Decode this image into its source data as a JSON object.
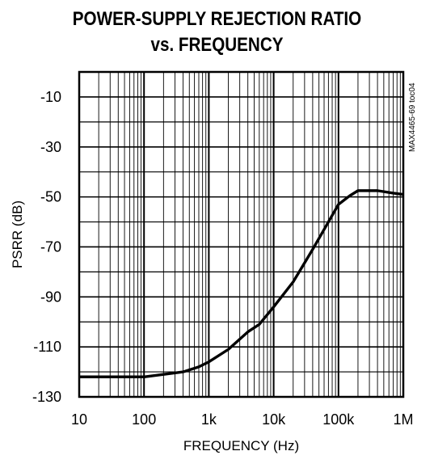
{
  "chart_data": {
    "type": "line",
    "title_line1": "POWER-SUPPLY REJECTION RATIO",
    "title_line2": "vs. FREQUENCY",
    "xlabel": "FREQUENCY (Hz)",
    "ylabel": "PSRR (dB)",
    "x_scale": "log",
    "xlim": [
      10,
      1000000
    ],
    "ylim": [
      -130,
      0
    ],
    "x_ticks": [
      {
        "value": 10,
        "label": "10"
      },
      {
        "value": 100,
        "label": "100"
      },
      {
        "value": 1000,
        "label": "1k"
      },
      {
        "value": 10000,
        "label": "10k"
      },
      {
        "value": 100000,
        "label": "100k"
      },
      {
        "value": 1000000,
        "label": "1M"
      }
    ],
    "y_ticks": [
      {
        "value": -10,
        "label": "-10"
      },
      {
        "value": -30,
        "label": "-30"
      },
      {
        "value": -50,
        "label": "-50"
      },
      {
        "value": -70,
        "label": "-70"
      },
      {
        "value": -90,
        "label": "-90"
      },
      {
        "value": -110,
        "label": "-110"
      },
      {
        "value": -130,
        "label": "-130"
      }
    ],
    "grid": true,
    "side_note": "MAX4465-69 toc04",
    "series": [
      {
        "x": [
          10,
          100,
          200,
          400,
          700,
          1000,
          2000,
          4000,
          6000,
          10000,
          20000,
          40000,
          70000,
          100000,
          150000,
          200000,
          400000,
          700000,
          1000000
        ],
        "y": [
          -122,
          -122,
          -121,
          -120,
          -118,
          -116,
          -111,
          -104,
          -101,
          -94,
          -84,
          -71,
          -60,
          -53,
          -49.5,
          -47.5,
          -47.5,
          -48.5,
          -49
        ]
      }
    ]
  }
}
